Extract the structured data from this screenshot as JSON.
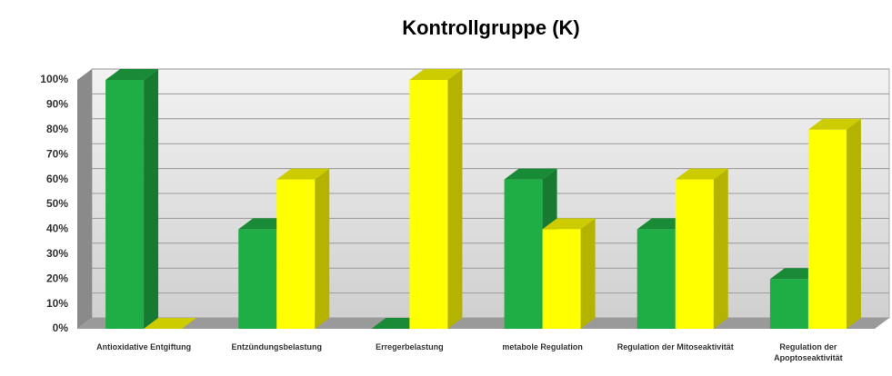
{
  "chart_data": {
    "type": "bar3d",
    "title": "Kontrollgruppe (K)",
    "categories": [
      "Antioxidative Entgiftung",
      "Entzündungsbelastung",
      "Erregerbelastung",
      "metabole Regulation",
      "Regulation der Mitoseaktivität",
      "Regulation der Apoptoseaktivität"
    ],
    "series": [
      {
        "color": "#1fae45",
        "values": [
          100,
          40,
          0,
          60,
          40,
          20
        ]
      },
      {
        "color": "#ffff00",
        "values": [
          0,
          60,
          100,
          40,
          60,
          80
        ]
      }
    ],
    "ylim": [
      0,
      100
    ],
    "yticks": [
      {
        "value": 0,
        "label": "0%"
      },
      {
        "value": 10,
        "label": "10%"
      },
      {
        "value": 20,
        "label": "20%"
      },
      {
        "value": 30,
        "label": "30%"
      },
      {
        "value": 40,
        "label": "40%"
      },
      {
        "value": 50,
        "label": "50%"
      },
      {
        "value": 60,
        "label": "60%"
      },
      {
        "value": 70,
        "label": "70%"
      },
      {
        "value": 80,
        "label": "80%"
      },
      {
        "value": 90,
        "label": "90%"
      },
      {
        "value": 100,
        "label": "100%"
      }
    ],
    "grid": true
  }
}
